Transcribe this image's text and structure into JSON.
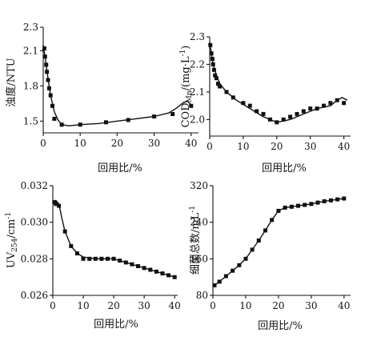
{
  "chart_data": [
    {
      "type": "scatter",
      "title": "",
      "xlabel": "回用比/%",
      "ylabel": "浊度/NTU",
      "xlim": [
        0,
        42
      ],
      "ylim": [
        1.4,
        2.3
      ],
      "xticks": [
        0,
        10,
        20,
        30,
        40
      ],
      "xtick_labels": [
        "0",
        "10",
        "20",
        "30",
        "40"
      ],
      "yticks": [
        1.5,
        1.8,
        2.1,
        2.3
      ],
      "ytick_labels": [
        "1.5",
        "1.8",
        "2.1",
        "2.3"
      ],
      "grid": false,
      "points": {
        "x": [
          0.3,
          0.5,
          0.8,
          1.0,
          1.3,
          1.6,
          2.0,
          2.5,
          3.0,
          5.0,
          10,
          17,
          23,
          30,
          35,
          40
        ],
        "y": [
          2.12,
          2.05,
          1.98,
          1.92,
          1.85,
          1.78,
          1.72,
          1.63,
          1.52,
          1.47,
          1.47,
          1.49,
          1.51,
          1.54,
          1.56,
          1.63
        ]
      },
      "fit_line": {
        "x": [
          0,
          0.5,
          1,
          1.5,
          2,
          3,
          4,
          5,
          7,
          10,
          15,
          20,
          25,
          30,
          34,
          36,
          38,
          39,
          40
        ],
        "y": [
          2.15,
          2.05,
          1.93,
          1.82,
          1.72,
          1.58,
          1.51,
          1.47,
          1.46,
          1.47,
          1.48,
          1.5,
          1.52,
          1.54,
          1.57,
          1.61,
          1.66,
          1.67,
          1.64
        ]
      }
    },
    {
      "type": "scatter",
      "title": "",
      "xlabel": "回用比/%",
      "ylabel_main": "COD",
      "ylabel_sub": "Mn",
      "ylabel_tail": "/(mg·L",
      "ylabel_sup": "-1",
      "ylabel_end": ")",
      "xlim": [
        0,
        42
      ],
      "ylim": [
        1.94,
        2.3
      ],
      "xticks": [
        0,
        10,
        20,
        30,
        40
      ],
      "xtick_labels": [
        "0",
        "10",
        "20",
        "30",
        "40"
      ],
      "yticks": [
        2.0,
        2.1,
        2.2,
        2.3
      ],
      "ytick_labels": [
        "2.0",
        "2.1",
        "2.2",
        "2.3"
      ],
      "grid": false,
      "points": {
        "x": [
          0.2,
          0.5,
          0.8,
          1.0,
          1.3,
          1.6,
          2.0,
          2.5,
          3.0,
          5.0,
          7.0,
          10,
          12,
          14,
          16,
          18,
          20,
          22,
          24,
          26,
          28,
          30,
          32,
          34,
          36,
          38,
          40
        ],
        "y": [
          2.27,
          2.24,
          2.22,
          2.2,
          2.18,
          2.16,
          2.15,
          2.13,
          2.12,
          2.1,
          2.08,
          2.06,
          2.05,
          2.03,
          2.02,
          2.0,
          1.99,
          2.0,
          2.01,
          2.02,
          2.03,
          2.04,
          2.04,
          2.05,
          2.06,
          2.07,
          2.06
        ]
      },
      "fit_line": {
        "x": [
          0,
          0.5,
          1,
          2,
          3,
          5,
          8,
          12,
          16,
          20,
          24,
          28,
          32,
          36,
          38,
          39.5,
          41
        ],
        "y": [
          2.28,
          2.24,
          2.2,
          2.16,
          2.13,
          2.1,
          2.07,
          2.04,
          2.01,
          1.99,
          2.0,
          2.02,
          2.04,
          2.05,
          2.07,
          2.08,
          2.07
        ]
      }
    },
    {
      "type": "scatter",
      "title": "",
      "xlabel": "回用比/%",
      "ylabel_main": "UV",
      "ylabel_sub": "254",
      "ylabel_tail": "/cm",
      "ylabel_sup": "-1",
      "ylabel_end": "",
      "xlim": [
        0,
        41
      ],
      "ylim": [
        0.026,
        0.032
      ],
      "xticks": [
        0,
        10,
        20,
        30,
        40
      ],
      "xtick_labels": [
        "0",
        "10",
        "20",
        "30",
        "40"
      ],
      "yticks": [
        0.026,
        0.028,
        0.03,
        0.032
      ],
      "ytick_labels": [
        "0.026",
        "0.028",
        "0.030",
        "0.032"
      ],
      "grid": false,
      "points": {
        "x": [
          0.5,
          1,
          2,
          4,
          6,
          8,
          10,
          12,
          14,
          16,
          18,
          20,
          22,
          24,
          26,
          28,
          30,
          32,
          34,
          36,
          38,
          40
        ],
        "y": [
          0.0311,
          0.031,
          0.0309,
          0.0295,
          0.0287,
          0.0283,
          0.028,
          0.028,
          0.028,
          0.028,
          0.028,
          0.028,
          0.0279,
          0.0278,
          0.0277,
          0.0276,
          0.0275,
          0.0274,
          0.0273,
          0.0272,
          0.0271,
          0.027
        ]
      },
      "fit_line": {
        "x": [
          0,
          0.5,
          1,
          1.5,
          2,
          3,
          4,
          6,
          8,
          10,
          14,
          20,
          26,
          32,
          40
        ],
        "y": [
          0.031,
          0.0311,
          0.0312,
          0.0311,
          0.031,
          0.0302,
          0.0295,
          0.0287,
          0.0283,
          0.0281,
          0.028,
          0.028,
          0.0277,
          0.0274,
          0.027
        ]
      }
    },
    {
      "type": "line",
      "title": "",
      "xlabel": "回用比/%",
      "ylabel_main": "细菌总数/mL",
      "ylabel_sup": "-1",
      "xlim": [
        0,
        42
      ],
      "ylim": [
        80,
        320
      ],
      "xticks": [
        0,
        10,
        20,
        30,
        40
      ],
      "xtick_labels": [
        "0",
        "10",
        "20",
        "30",
        "40"
      ],
      "yticks": [
        80,
        160,
        240,
        320
      ],
      "ytick_labels": [
        "80",
        "160",
        "240",
        "320"
      ],
      "grid": false,
      "points": {
        "x": [
          0.5,
          2,
          4,
          6,
          8,
          10,
          12,
          14,
          16,
          18,
          20,
          22,
          24,
          26,
          28,
          30,
          32,
          34,
          36,
          38,
          40
        ],
        "y": [
          102,
          110,
          122,
          134,
          146,
          160,
          180,
          200,
          222,
          245,
          265,
          272,
          274,
          276,
          278,
          280,
          283,
          286,
          288,
          290,
          292
        ]
      }
    }
  ]
}
